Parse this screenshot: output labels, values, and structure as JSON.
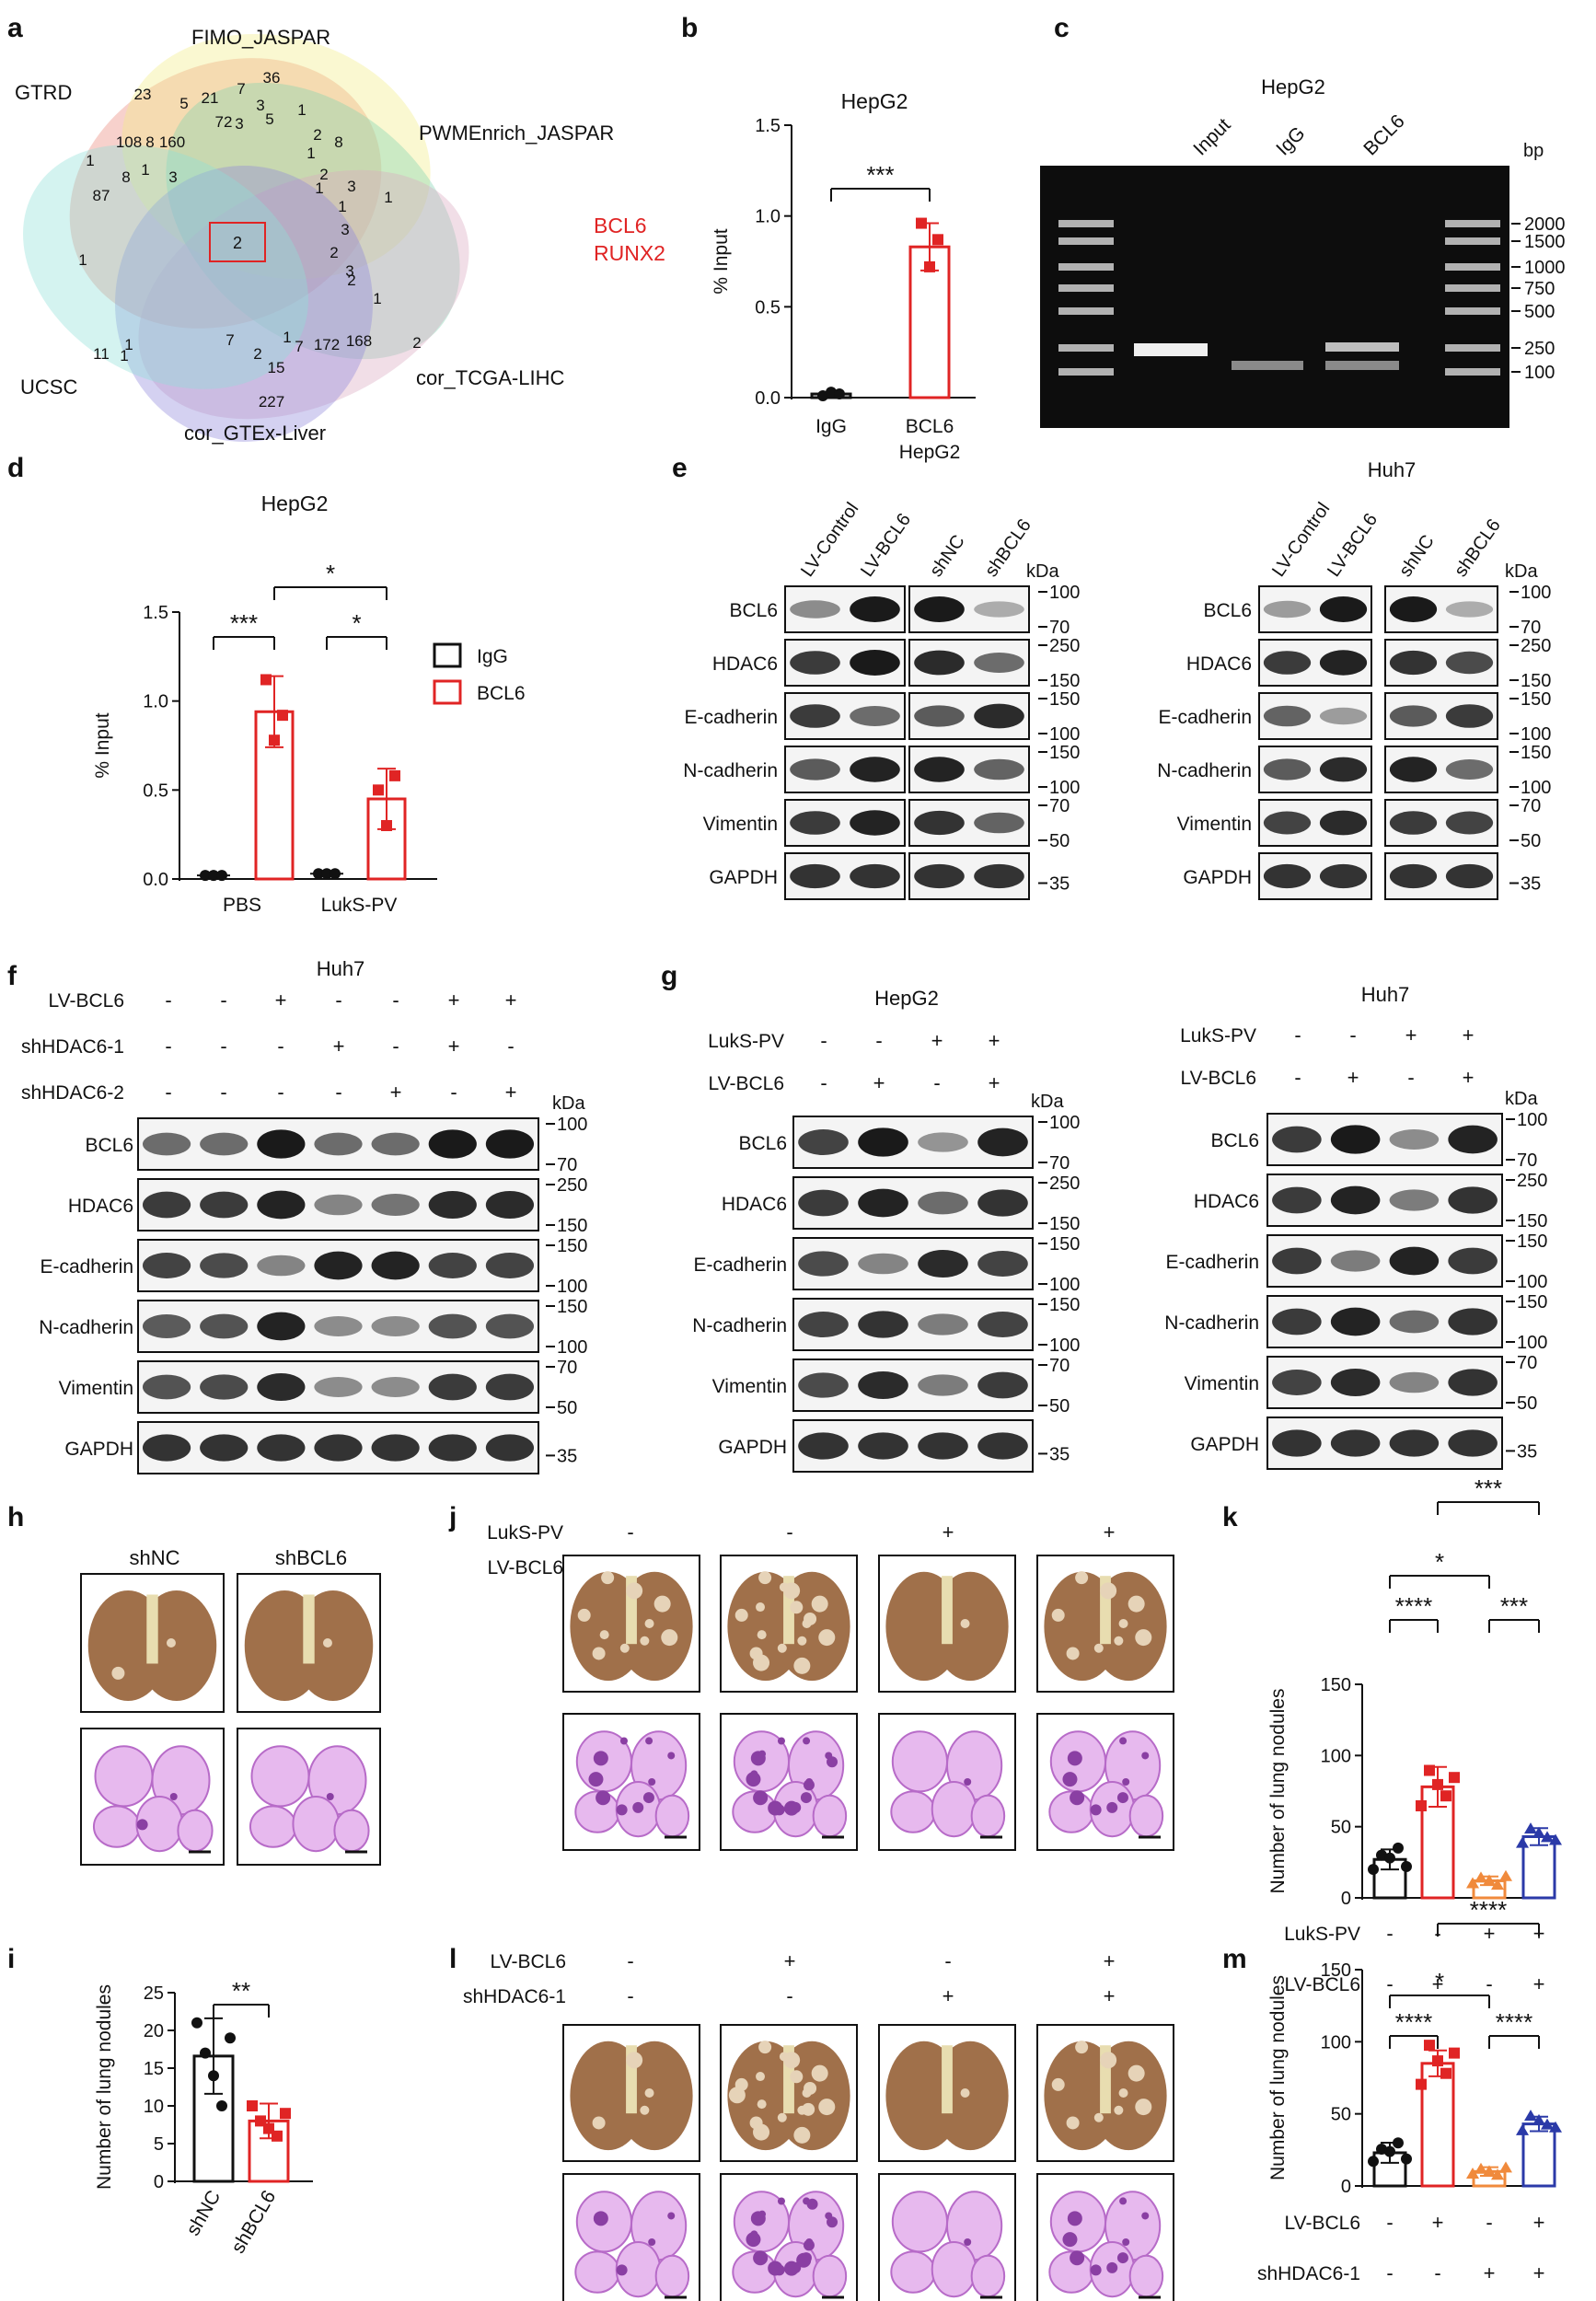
{
  "panel_letters": {
    "a": "a",
    "b": "b",
    "c": "c",
    "d": "d",
    "e": "e",
    "f": "f",
    "g": "g",
    "h": "h",
    "i": "i",
    "j": "j",
    "k": "k",
    "l": "l",
    "m": "m"
  },
  "colors": {
    "red": "#e02424",
    "black": "#111111",
    "orange": "#f08a3c",
    "blue": "#2b3aa8",
    "gel": "#0d0d0d",
    "band": "#1a1a1a",
    "he": "#b76bc8",
    "lung": "#a0704a"
  },
  "venn": {
    "sets": [
      "GTRD",
      "FIMO_JASPAR",
      "PWMEnrich_JASPAR",
      "cor_TCGA-LIHC",
      "cor_GTEx-Liver",
      "UCSC"
    ],
    "center_count": "2",
    "highlight_genes": [
      "BCL6",
      "RUNX2"
    ],
    "counts": [
      "36",
      "23",
      "5",
      "21",
      "7",
      "3",
      "3",
      "5",
      "1",
      "2",
      "8",
      "108",
      "8",
      "160",
      "1",
      "72",
      "8",
      "1",
      "87",
      "3",
      "1",
      "2",
      "1",
      "3",
      "1",
      "1",
      "3",
      "2",
      "3",
      "2",
      "1",
      "1",
      "7",
      "1",
      "2",
      "7",
      "172",
      "168",
      "2",
      "15",
      "227",
      "11",
      "1",
      "1"
    ]
  },
  "panel_b": {
    "title": "HepG2",
    "ylabel": "% Input",
    "yticks": [
      "0.0",
      "0.5",
      "1.0",
      "1.5"
    ],
    "categories": [
      "IgG",
      "BCL6"
    ],
    "xsub": "HepG2",
    "sig": "***",
    "chart_data": {
      "type": "bar",
      "categories": [
        "IgG",
        "BCL6"
      ],
      "values": [
        0.02,
        0.83
      ],
      "points": [
        [
          0.01,
          0.03,
          0.02
        ],
        [
          0.96,
          0.72,
          0.87
        ]
      ],
      "ylim": [
        0,
        1.5
      ],
      "ylabel": "% Input",
      "title": "HepG2"
    }
  },
  "panel_c": {
    "title": "HepG2",
    "lanes": [
      "Input",
      "IgG",
      "BCL6"
    ],
    "bp_label": "bp",
    "ladder": [
      "2000",
      "1500",
      "1000",
      "750",
      "500",
      "250",
      "100"
    ]
  },
  "panel_d": {
    "title": "HepG2",
    "ylabel": "% Input",
    "yticks": [
      "0.0",
      "0.5",
      "1.0",
      "1.5"
    ],
    "groups": [
      "PBS",
      "LukS-PV"
    ],
    "legend": [
      "IgG",
      "BCL6"
    ],
    "sig": [
      "***",
      "*",
      "*"
    ],
    "chart_data": {
      "type": "bar",
      "categories": [
        "PBS",
        "LukS-PV"
      ],
      "series": [
        {
          "name": "IgG",
          "values": [
            0.02,
            0.03
          ]
        },
        {
          "name": "BCL6",
          "values": [
            0.94,
            0.45
          ]
        }
      ],
      "ylim": [
        0,
        1.5
      ],
      "ylabel": "% Input",
      "title": "HepG2"
    }
  },
  "blots": {
    "kda": "kDa",
    "proteins": [
      "BCL6",
      "HDAC6",
      "E-cadherin",
      "N-cadherin",
      "Vimentin",
      "GAPDH"
    ],
    "mw": [
      [
        "100",
        "70"
      ],
      [
        "250",
        "150"
      ],
      [
        "150",
        "100"
      ],
      [
        "150",
        "100"
      ],
      [
        "70",
        "50"
      ],
      [
        "35"
      ]
    ],
    "e_title_right": "Huh7",
    "e_lanes": [
      "LV-Control",
      "LV-BCL6",
      "shNC",
      "shBCL6"
    ],
    "f_title": "Huh7",
    "f_rows": [
      {
        "label": "LV-BCL6",
        "signs": [
          "-",
          "-",
          "+",
          "-",
          "-",
          "+",
          "+"
        ]
      },
      {
        "label": "shHDAC6-1",
        "signs": [
          "-",
          "-",
          "-",
          "+",
          "-",
          "+",
          "-"
        ]
      },
      {
        "label": "shHDAC6-2",
        "signs": [
          "-",
          "-",
          "-",
          "-",
          "+",
          "-",
          "+"
        ]
      }
    ],
    "g_title_left": "HepG2",
    "g_title_right": "Huh7",
    "g_rows": [
      {
        "label": "LukS-PV",
        "signs": [
          "-",
          "-",
          "+",
          "+"
        ]
      },
      {
        "label": "LV-BCL6",
        "signs": [
          "-",
          "+",
          "-",
          "+"
        ]
      }
    ]
  },
  "panel_h": {
    "labels": [
      "shNC",
      "shBCL6"
    ]
  },
  "panel_i": {
    "ylabel": "Number of lung nodules",
    "yticks": [
      "0",
      "5",
      "10",
      "15",
      "20",
      "25"
    ],
    "categories": [
      "shNC",
      "shBCL6"
    ],
    "sig": "**",
    "chart_data": {
      "type": "bar",
      "categories": [
        "shNC",
        "shBCL6"
      ],
      "values": [
        16.6,
        8.0
      ],
      "errors": [
        5.0,
        2.3
      ],
      "ylim": [
        0,
        25
      ],
      "ylabel": "Number of lung nodules"
    }
  },
  "panel_j": {
    "rows": [
      {
        "label": "LukS-PV",
        "signs": [
          "-",
          "-",
          "+",
          "+"
        ]
      },
      {
        "label": "LV-BCL6",
        "signs": [
          "-",
          "+",
          "-",
          "+"
        ]
      }
    ]
  },
  "panel_k": {
    "ylabel": "Number of lung nodules",
    "yticks": [
      "0",
      "50",
      "100",
      "150"
    ],
    "rows": [
      {
        "label": "LukS-PV",
        "signs": [
          "-",
          "-",
          "+",
          "+"
        ]
      },
      {
        "label": "LV-BCL6",
        "signs": [
          "-",
          "+",
          "-",
          "+"
        ]
      }
    ],
    "sig": [
      "****",
      "***",
      "*",
      "***"
    ],
    "chart_data": {
      "type": "bar",
      "categories": [
        "Control",
        "LV-BCL6",
        "LukS-PV",
        "LukS-PV+LV-BCL6"
      ],
      "values": [
        27,
        78,
        12,
        43
      ],
      "errors": [
        7,
        14,
        3,
        6
      ],
      "ylim": [
        0,
        150
      ],
      "ylabel": "Number of lung nodules"
    }
  },
  "panel_l": {
    "rows": [
      {
        "label": "LV-BCL6",
        "signs": [
          "-",
          "+",
          "-",
          "+"
        ]
      },
      {
        "label": "shHDAC6-1",
        "signs": [
          "-",
          "-",
          "+",
          "+"
        ]
      }
    ]
  },
  "panel_m": {
    "ylabel": "Number of lung nodules",
    "yticks": [
      "0",
      "50",
      "100",
      "150"
    ],
    "rows": [
      {
        "label": "LV-BCL6",
        "signs": [
          "-",
          "+",
          "-",
          "+"
        ]
      },
      {
        "label": "shHDAC6-1",
        "signs": [
          "-",
          "-",
          "+",
          "+"
        ]
      }
    ],
    "sig": [
      "****",
      "****",
      "*",
      "****"
    ],
    "chart_data": {
      "type": "bar",
      "categories": [
        "Control",
        "LV-BCL6",
        "shHDAC6-1",
        "LV-BCL6+shHDAC6-1"
      ],
      "values": [
        23,
        85,
        10,
        43
      ],
      "errors": [
        7,
        9,
        3,
        5
      ],
      "ylim": [
        0,
        150
      ],
      "ylabel": "Number of lung nodules"
    }
  }
}
